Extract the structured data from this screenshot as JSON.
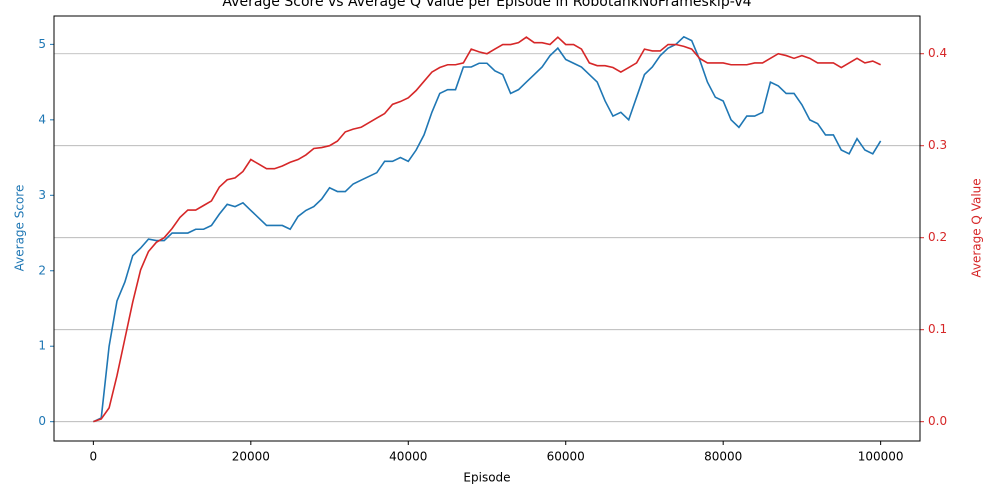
{
  "chart_data": {
    "type": "line",
    "title": "Average Score vs Average Q Value per Episode in RobotankNoFrameskip-v4",
    "x_label": "Episode",
    "y_label": "Average Score",
    "y2_label": "Average Q Value",
    "x": [
      0,
      1000,
      2000,
      3000,
      4000,
      5000,
      6000,
      7000,
      8000,
      9000,
      10000,
      11000,
      12000,
      13000,
      14000,
      15000,
      16000,
      17000,
      18000,
      19000,
      20000,
      21000,
      22000,
      23000,
      24000,
      25000,
      26000,
      27000,
      28000,
      29000,
      30000,
      31000,
      32000,
      33000,
      34000,
      35000,
      36000,
      37000,
      38000,
      39000,
      40000,
      41000,
      42000,
      43000,
      44000,
      45000,
      46000,
      47000,
      48000,
      49000,
      50000,
      51000,
      52000,
      53000,
      54000,
      55000,
      56000,
      57000,
      58000,
      59000,
      60000,
      61000,
      62000,
      63000,
      64000,
      65000,
      66000,
      67000,
      68000,
      69000,
      70000,
      71000,
      72000,
      73000,
      74000,
      75000,
      76000,
      77000,
      78000,
      79000,
      80000,
      81000,
      82000,
      83000,
      84000,
      85000,
      86000,
      87000,
      88000,
      89000,
      90000,
      91000,
      92000,
      93000,
      94000,
      95000,
      96000,
      97000,
      98000,
      99000,
      100000
    ],
    "series": [
      {
        "name": "Average Score",
        "color": "#1f77b4",
        "axis": "y",
        "values": [
          0,
          0.05,
          1.0,
          1.6,
          1.85,
          2.2,
          2.3,
          2.42,
          2.4,
          2.4,
          2.5,
          2.5,
          2.5,
          2.55,
          2.55,
          2.6,
          2.75,
          2.88,
          2.85,
          2.9,
          2.8,
          2.7,
          2.6,
          2.6,
          2.6,
          2.55,
          2.72,
          2.8,
          2.85,
          2.95,
          3.1,
          3.05,
          3.05,
          3.15,
          3.2,
          3.25,
          3.3,
          3.45,
          3.45,
          3.5,
          3.45,
          3.6,
          3.8,
          4.1,
          4.35,
          4.4,
          4.4,
          4.7,
          4.7,
          4.75,
          4.75,
          4.65,
          4.6,
          4.35,
          4.4,
          4.5,
          4.6,
          4.7,
          4.85,
          4.95,
          4.8,
          4.75,
          4.7,
          4.6,
          4.5,
          4.25,
          4.05,
          4.1,
          4.0,
          4.3,
          4.6,
          4.7,
          4.85,
          4.95,
          5.0,
          5.1,
          5.05,
          4.8,
          4.5,
          4.3,
          4.25,
          4.0,
          3.9,
          4.05,
          4.05,
          4.1,
          4.5,
          4.45,
          4.35,
          4.35,
          4.2,
          4.0,
          3.95,
          3.8,
          3.8,
          3.6,
          3.55,
          3.75,
          3.6,
          3.55,
          3.72
        ]
      },
      {
        "name": "Average Q Value",
        "color": "#d62728",
        "axis": "y2",
        "values": [
          0,
          0.003,
          0.015,
          0.05,
          0.09,
          0.13,
          0.165,
          0.185,
          0.195,
          0.2,
          0.21,
          0.222,
          0.23,
          0.23,
          0.235,
          0.24,
          0.255,
          0.263,
          0.265,
          0.272,
          0.285,
          0.28,
          0.275,
          0.275,
          0.278,
          0.282,
          0.285,
          0.29,
          0.297,
          0.298,
          0.3,
          0.305,
          0.315,
          0.318,
          0.32,
          0.325,
          0.33,
          0.335,
          0.345,
          0.348,
          0.352,
          0.36,
          0.37,
          0.38,
          0.385,
          0.388,
          0.388,
          0.39,
          0.405,
          0.402,
          0.4,
          0.405,
          0.41,
          0.41,
          0.412,
          0.418,
          0.412,
          0.412,
          0.41,
          0.418,
          0.41,
          0.41,
          0.405,
          0.39,
          0.387,
          0.387,
          0.385,
          0.38,
          0.385,
          0.39,
          0.405,
          0.403,
          0.403,
          0.41,
          0.41,
          0.408,
          0.405,
          0.395,
          0.39,
          0.39,
          0.39,
          0.388,
          0.388,
          0.388,
          0.39,
          0.39,
          0.395,
          0.4,
          0.398,
          0.395,
          0.398,
          0.395,
          0.39,
          0.39,
          0.39,
          0.385,
          0.39,
          0.395,
          0.39,
          0.392,
          0.388
        ]
      }
    ],
    "xlim": [
      -5000,
      105000
    ],
    "xticks": [
      0,
      20000,
      40000,
      60000,
      80000,
      100000
    ],
    "ylim": [
      -0.256,
      5.376
    ],
    "yticks": [
      0,
      1,
      2,
      3,
      4,
      5
    ],
    "y2lim": [
      -0.021,
      0.441
    ],
    "y2ticks": [
      {
        "value": 0,
        "label": "0.0"
      },
      0.1,
      0.2,
      0.3,
      0.4
    ],
    "grid": "y2"
  }
}
